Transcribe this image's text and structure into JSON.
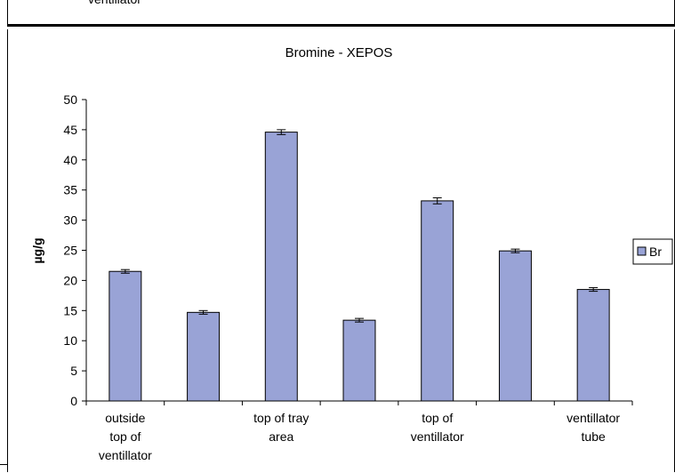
{
  "top_fragment": {
    "text": "ventillator"
  },
  "chart_data": {
    "type": "bar",
    "title": "Bromine - XEPOS",
    "xlabel": "",
    "ylabel": "µg/g",
    "ylim": [
      0,
      50
    ],
    "yticks": [
      0,
      5,
      10,
      15,
      20,
      25,
      30,
      35,
      40,
      45,
      50
    ],
    "grid": false,
    "legend_position": "right",
    "categories": [
      "outside top of ventillator",
      "",
      "top of tray area",
      "",
      "top of ventillator",
      "",
      "ventillator tube"
    ],
    "category_label_lines": [
      [
        "outside",
        "top of",
        "ventillator"
      ],
      [],
      [
        "top of tray",
        "area"
      ],
      [],
      [
        "top of",
        "ventillator"
      ],
      [],
      [
        "ventillator",
        "tube"
      ]
    ],
    "series": [
      {
        "name": "Br",
        "color": "#99A3D6",
        "values": [
          21.5,
          14.7,
          44.6,
          13.4,
          33.2,
          24.9,
          18.5
        ],
        "errors": [
          0.3,
          0.3,
          0.4,
          0.3,
          0.5,
          0.3,
          0.3
        ]
      }
    ]
  }
}
